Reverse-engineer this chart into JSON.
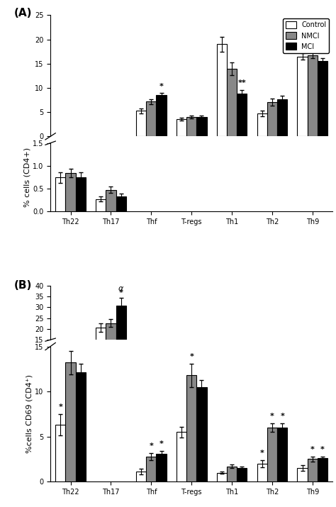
{
  "panel_A": {
    "categories": [
      "Th22",
      "Th17",
      "Thf",
      "T-regs",
      "Th1",
      "Th2",
      "Th9"
    ],
    "values": {
      "Control": [
        0.74,
        0.27,
        5.3,
        3.5,
        19.0,
        4.7,
        16.5
      ],
      "NMCI": [
        0.84,
        0.47,
        7.2,
        4.0,
        14.0,
        7.1,
        16.8
      ],
      "MCI": [
        0.74,
        0.33,
        8.5,
        4.0,
        8.8,
        7.7,
        15.5
      ]
    },
    "errors": {
      "Control": [
        0.12,
        0.05,
        0.5,
        0.3,
        1.5,
        0.6,
        0.7
      ],
      "NMCI": [
        0.1,
        0.07,
        0.5,
        0.3,
        1.3,
        0.7,
        0.7
      ],
      "MCI": [
        0.12,
        0.05,
        0.5,
        0.3,
        0.8,
        0.7,
        0.7
      ]
    },
    "upper_cats_idx": [
      2,
      3,
      4,
      5,
      6
    ],
    "lower_cats_idx": [
      0,
      1
    ],
    "upper_ylim": [
      0,
      25
    ],
    "upper_yticks": [
      0,
      5,
      10,
      15,
      20,
      25
    ],
    "lower_ylim": [
      0,
      1.5
    ],
    "lower_yticks": [
      0.0,
      0.5,
      1.0,
      1.5
    ],
    "ylabel": "% cells (CD4+)",
    "annot_upper": [
      {
        "cat_idx": 2,
        "grp": "MCI",
        "text": "*"
      },
      {
        "cat_idx": 4,
        "grp": "MCI",
        "text": "**"
      }
    ],
    "annot_lower": []
  },
  "panel_B": {
    "categories": [
      "Th22",
      "Th17",
      "Thf",
      "T-regs",
      "Th1",
      "Th2",
      "Th9"
    ],
    "values": {
      "Control": [
        6.3,
        20.5,
        1.1,
        5.5,
        1.0,
        2.0,
        1.5
      ],
      "NMCI": [
        13.2,
        22.7,
        2.8,
        11.8,
        1.7,
        6.0,
        2.5
      ],
      "MCI": [
        12.1,
        30.8,
        3.1,
        10.5,
        1.5,
        6.0,
        2.6
      ]
    },
    "errors": {
      "Control": [
        1.2,
        2.0,
        0.3,
        0.6,
        0.15,
        0.4,
        0.3
      ],
      "NMCI": [
        1.3,
        1.8,
        0.4,
        1.3,
        0.2,
        0.5,
        0.3
      ],
      "MCI": [
        1.0,
        3.5,
        0.3,
        0.8,
        0.2,
        0.5,
        0.2
      ]
    },
    "upper_cats_idx": [
      1
    ],
    "lower_cats_idx": [
      0,
      2,
      3,
      4,
      5,
      6
    ],
    "upper_ylim": [
      15,
      40
    ],
    "upper_yticks": [
      15,
      20,
      25,
      30,
      35,
      40
    ],
    "lower_ylim": [
      0,
      15
    ],
    "lower_yticks": [
      0,
      5,
      10,
      15
    ],
    "ylabel": "%cells CD69 (CD4⁺)",
    "annot_upper": [
      {
        "cat_idx": 1,
        "grp": "MCI",
        "text": "*",
        "extra": "α"
      }
    ],
    "annot_lower": [
      {
        "cat_idx": 0,
        "grp": "Control",
        "text": "*"
      },
      {
        "cat_idx": 2,
        "grp": "NMCI",
        "text": "*"
      },
      {
        "cat_idx": 2,
        "grp": "MCI",
        "text": "*"
      },
      {
        "cat_idx": 3,
        "grp": "NMCI",
        "text": "*"
      },
      {
        "cat_idx": 5,
        "grp": "Control",
        "text": "*"
      },
      {
        "cat_idx": 5,
        "grp": "NMCI",
        "text": "*"
      },
      {
        "cat_idx": 5,
        "grp": "MCI",
        "text": "*"
      },
      {
        "cat_idx": 6,
        "grp": "NMCI",
        "text": "*"
      },
      {
        "cat_idx": 6,
        "grp": "MCI",
        "text": "*"
      }
    ]
  },
  "groups": [
    "Control",
    "NMCI",
    "MCI"
  ],
  "bar_colors": {
    "Control": "white",
    "NMCI": "#888888",
    "MCI": "black"
  },
  "bar_edgecolor": "black",
  "bar_width": 0.25,
  "background_color": "white"
}
